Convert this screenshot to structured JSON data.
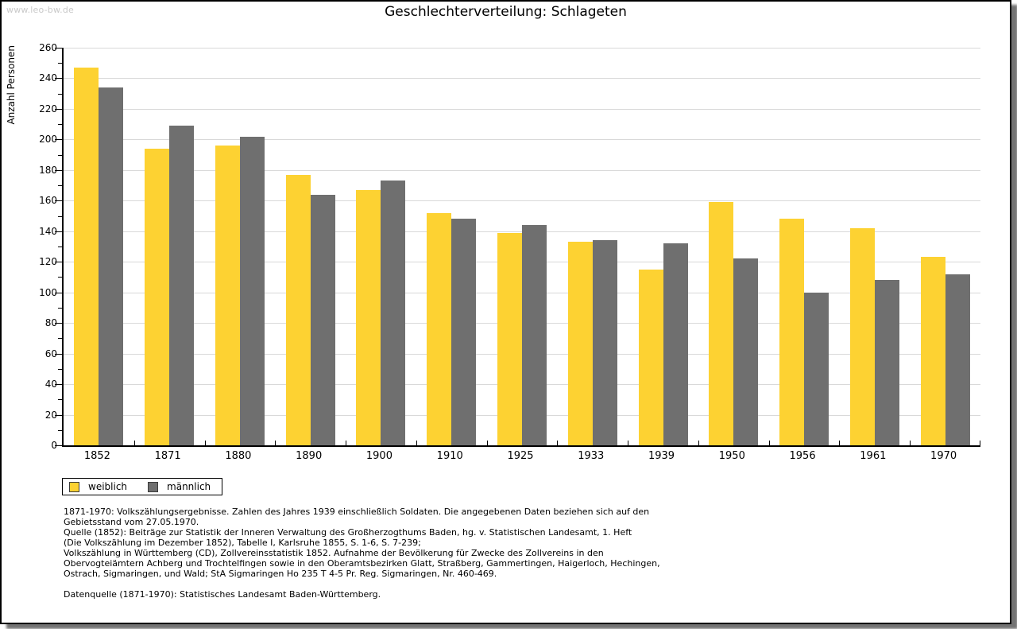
{
  "watermark": "www.leo-bw.de",
  "title": "Geschlechterverteilung: Schlageten",
  "chart_data": {
    "type": "bar",
    "title": "Geschlechterverteilung: Schlageten",
    "xlabel": "",
    "ylabel": "Anzahl Personen",
    "ylim": [
      0,
      260
    ],
    "ytick_major": 20,
    "ytick_minor": 10,
    "grid": "horizontal",
    "legend_position": "bottom-left",
    "categories": [
      "1852",
      "1871",
      "1880",
      "1890",
      "1900",
      "1910",
      "1925",
      "1933",
      "1939",
      "1950",
      "1956",
      "1961",
      "1970"
    ],
    "series": [
      {
        "name": "weiblich",
        "color": "#fdd232",
        "values": [
          247,
          194,
          196,
          177,
          167,
          152,
          139,
          133,
          115,
          159,
          148,
          142,
          123
        ]
      },
      {
        "name": "männlich",
        "color": "#6f6f6f",
        "values": [
          234,
          209,
          202,
          164,
          173,
          148,
          144,
          134,
          132,
          122,
          100,
          108,
          112
        ]
      }
    ]
  },
  "footnotes": {
    "lines": [
      "1871-1970: Volkszählungsergebnisse. Zahlen des Jahres 1939 einschließlich Soldaten. Die angegebenen Daten beziehen sich auf den",
      "Gebietsstand vom 27.05.1970.",
      "Quelle (1852): Beiträge zur Statistik der Inneren Verwaltung des Großherzogthums Baden, hg. v. Statistischen Landesamt, 1. Heft",
      "(Die Volkszählung im Dezember 1852), Tabelle I, Karlsruhe 1855, S. 1-6, S. 7-239;",
      "Volkszählung in Württemberg (CD), Zollvereinsstatistik 1852. Aufnahme der Bevölkerung für Zwecke des Zollvereins in den",
      "Obervogteiämtern Achberg und Trochtelfingen sowie in den Oberamtsbezirken Glatt, Straßberg, Gammertingen, Haigerloch, Hechingen,",
      "Ostrach, Sigmaringen, und Wald; StA Sigmaringen Ho 235 T 4-5 Pr. Reg. Sigmaringen, Nr. 460-469."
    ],
    "datasource": "Datenquelle (1871-1970): Statistisches Landesamt Baden-Württemberg."
  },
  "colors": {
    "frame_border": "#000000",
    "gridline": "#d9d9d9",
    "watermark": "#c9c9c9",
    "weiblich": "#fdd232",
    "maennlich": "#6f6f6f"
  }
}
